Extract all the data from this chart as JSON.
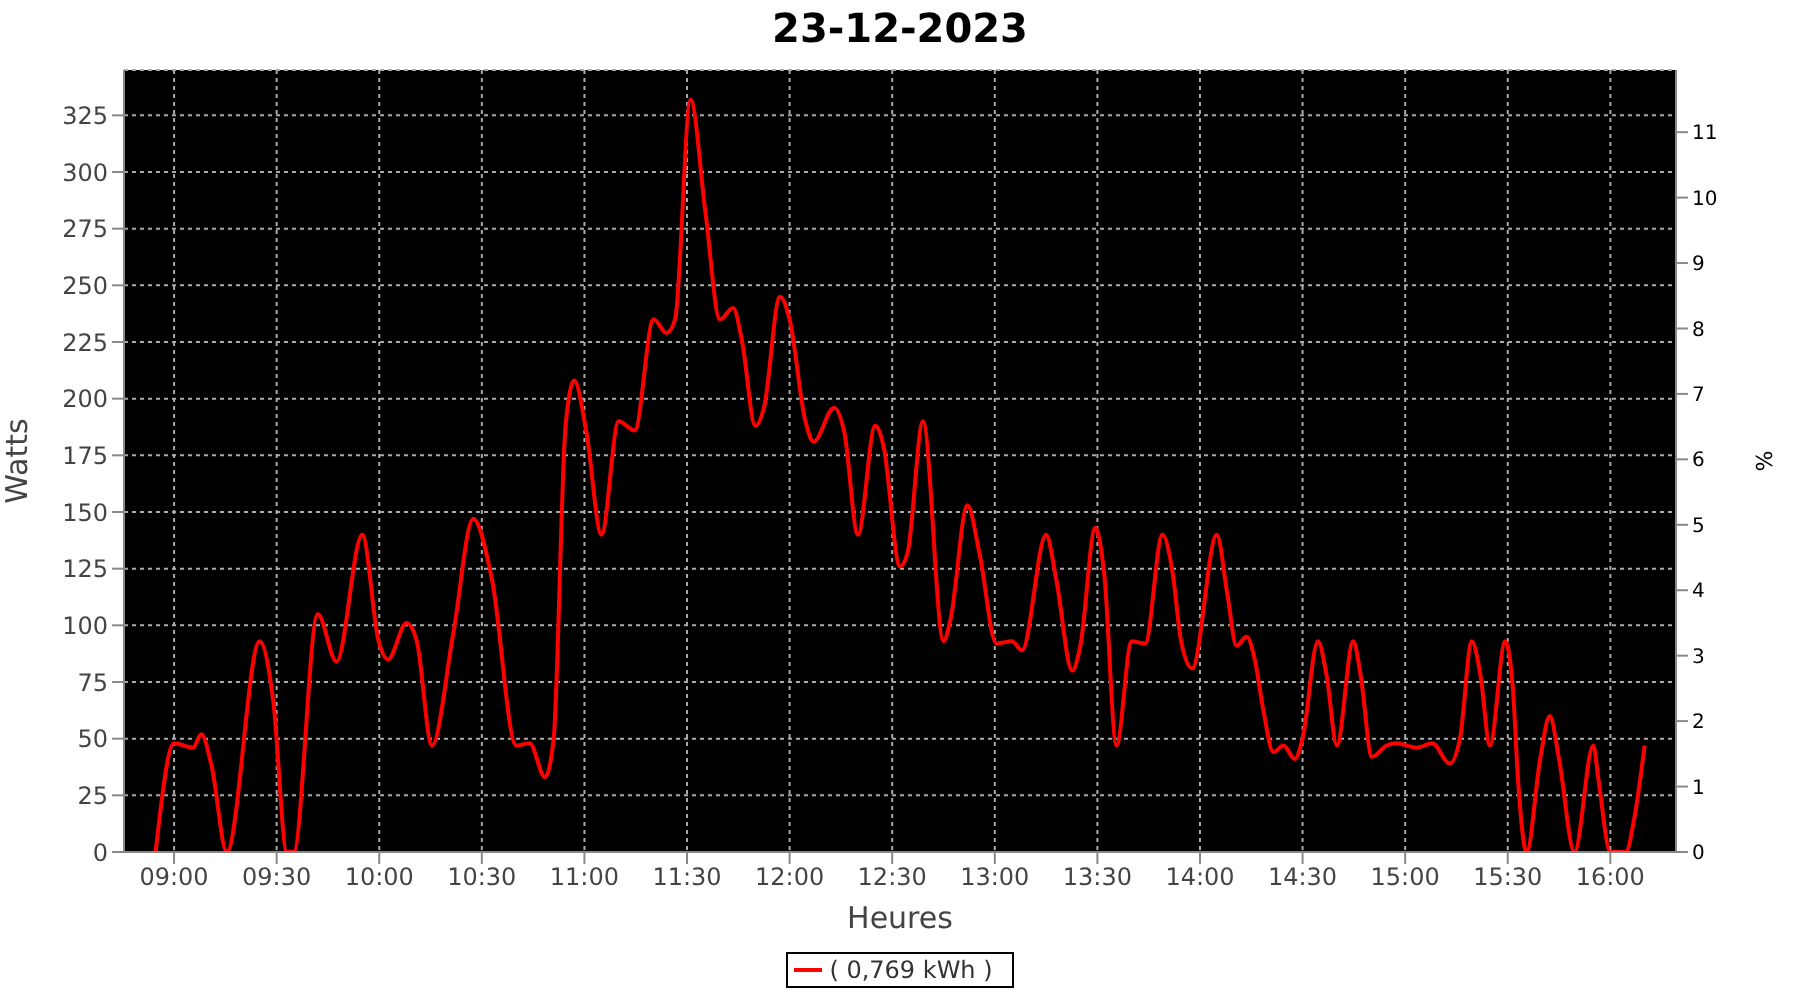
{
  "chart_data": {
    "type": "line",
    "title": "23-12-2023",
    "xlabel": "Heures",
    "ylabel": "Watts",
    "y2label": "%",
    "x": [
      8.91,
      9.0,
      9.092,
      9.133,
      9.183,
      9.257,
      9.417,
      9.483,
      9.55,
      9.583,
      9.7,
      9.792,
      9.917,
      9.997,
      10.043,
      10.133,
      10.183,
      10.257,
      10.36,
      10.458,
      10.55,
      10.667,
      10.733,
      10.808,
      10.85,
      10.908,
      10.95,
      11.01,
      11.083,
      11.167,
      11.245,
      11.337,
      11.4,
      11.442,
      11.517,
      11.59,
      11.66,
      11.725,
      11.767,
      11.833,
      11.875,
      11.953,
      12.0,
      12.077,
      12.117,
      12.217,
      12.267,
      12.333,
      12.417,
      12.458,
      12.538,
      12.575,
      12.65,
      12.75,
      12.783,
      12.867,
      12.925,
      13.008,
      13.083,
      13.133,
      13.25,
      13.3,
      13.377,
      13.417,
      13.49,
      13.533,
      13.593,
      13.667,
      13.733,
      13.817,
      13.867,
      13.908,
      13.962,
      14.082,
      14.133,
      14.178,
      14.227,
      14.267,
      14.308,
      14.358,
      14.407,
      14.462,
      14.5,
      14.575,
      14.617,
      14.667,
      14.747,
      14.783,
      14.838,
      14.91,
      14.958,
      15.055,
      15.133,
      15.217,
      15.267,
      15.325,
      15.367,
      15.413,
      15.488,
      15.525,
      15.55,
      15.592,
      15.658,
      15.705,
      15.75,
      15.825,
      15.917,
      15.942,
      16.0,
      16.075,
      16.117,
      16.167
    ],
    "series": [
      {
        "name": "( 0,769 kWh )",
        "color": "#ff0000",
        "values": [
          0,
          48,
          46,
          52,
          38,
          0,
          93,
          67,
          0,
          0,
          105,
          84,
          140,
          93,
          85,
          101,
          93,
          47,
          96,
          147,
          120,
          47,
          48,
          33,
          50,
          188,
          208,
          185,
          140,
          190,
          186,
          235,
          229,
          235,
          332,
          282,
          235,
          240,
          226,
          188,
          196,
          245,
          235,
          190,
          181,
          196,
          185,
          140,
          188,
          179,
          126,
          132,
          190,
          93,
          102,
          153,
          132,
          92,
          93,
          89,
          140,
          120,
          80,
          91,
          143,
          123,
          47,
          93,
          92,
          140,
          123,
          93,
          81,
          140,
          114,
          91,
          95,
          85,
          63,
          44,
          47,
          41,
          50,
          93,
          78,
          47,
          93,
          78,
          42,
          47,
          48,
          46,
          48,
          39,
          50,
          93,
          78,
          47,
          93,
          72,
          32,
          0,
          41,
          60,
          41,
          0,
          47,
          32,
          0,
          0,
          15,
          47
        ]
      }
    ],
    "xlim": [
      8.756,
      16.32
    ],
    "xticks": [
      {
        "value": 9,
        "label": "09:00"
      },
      {
        "value": 9.5,
        "label": "09:30"
      },
      {
        "value": 10,
        "label": "10:00"
      },
      {
        "value": 10.5,
        "label": "10:30"
      },
      {
        "value": 11,
        "label": "11:00"
      },
      {
        "value": 11.5,
        "label": "11:30"
      },
      {
        "value": 12,
        "label": "12:00"
      },
      {
        "value": 12.5,
        "label": "12:30"
      },
      {
        "value": 13,
        "label": "13:00"
      },
      {
        "value": 13.5,
        "label": "13:30"
      },
      {
        "value": 14,
        "label": "14:00"
      },
      {
        "value": 14.5,
        "label": "14:30"
      },
      {
        "value": 15,
        "label": "15:00"
      },
      {
        "value": 15.5,
        "label": "15:30"
      },
      {
        "value": 16,
        "label": "16:00"
      }
    ],
    "ylim": [
      0,
      345
    ],
    "yticks": [
      0,
      25,
      50,
      75,
      100,
      125,
      150,
      175,
      200,
      225,
      250,
      275,
      300,
      325
    ],
    "y2lim": [
      0,
      11.95
    ],
    "y2ticks": [
      0,
      1,
      2,
      3,
      4,
      5,
      6,
      7,
      8,
      9,
      10,
      11
    ],
    "grid": true,
    "legend": "bottom",
    "marker": "none",
    "line_style": "solid"
  }
}
